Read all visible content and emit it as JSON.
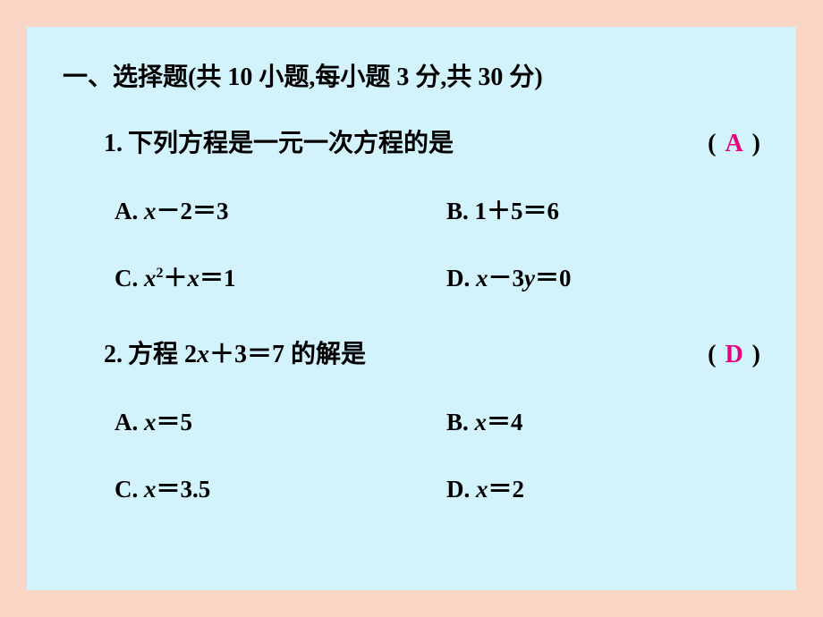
{
  "colors": {
    "outer_bg": "#fad6c7",
    "inner_bg": "#d3f3fc",
    "text": "#000000",
    "answer": "#e4007f"
  },
  "section": {
    "label": "一、选择题(共 10 小题,每小题 3 分,共 30 分)"
  },
  "questions": [
    {
      "number": "1.",
      "stem": "下列方程是一元一次方程的是",
      "paren_open": "(",
      "paren_close": ")",
      "answer": "A",
      "options": {
        "A": {
          "label": "A.",
          "expr_html": "<span class=\"math\">x</span><span class=\"op\">－</span><span class=\"num\">2</span><span class=\"op\">＝</span><span class=\"num\">3</span>"
        },
        "B": {
          "label": "B.",
          "expr_html": "<span class=\"num\">1</span><span class=\"op\">＋</span><span class=\"num\">5</span><span class=\"op\">＝</span><span class=\"num\">6</span>"
        },
        "C": {
          "label": "C.",
          "expr_html": "<span class=\"math\">x</span><span class=\"sup\">2</span><span class=\"op\">＋</span><span class=\"math\">x</span><span class=\"op\">＝</span><span class=\"num\">1</span>"
        },
        "D": {
          "label": "D.",
          "expr_html": "<span class=\"math\">x</span><span class=\"op\">－</span><span class=\"num\">3</span><span class=\"math\">y</span><span class=\"op\">＝</span><span class=\"num\">0</span>"
        }
      }
    },
    {
      "number": "2.",
      "stem_html": "方程 <span class=\"num\">2</span><span class=\"math\">x</span><span class=\"op\">＋</span><span class=\"num\">3</span><span class=\"op\">＝</span><span class=\"num\">7</span> 的解是",
      "paren_open": "(",
      "paren_close": ")",
      "answer": "D",
      "options": {
        "A": {
          "label": "A.",
          "expr_html": "<span class=\"math\">x</span><span class=\"op\">＝</span><span class=\"num\">5</span>"
        },
        "B": {
          "label": "B.",
          "expr_html": "<span class=\"math\">x</span><span class=\"op\">＝</span><span class=\"num\">4</span>"
        },
        "C": {
          "label": "C.",
          "expr_html": "<span class=\"math\">x</span><span class=\"op\">＝</span><span class=\"num\">3.5</span>"
        },
        "D": {
          "label": "D.",
          "expr_html": "<span class=\"math\">x</span><span class=\"op\">＝</span><span class=\"num\">2</span>"
        }
      }
    }
  ]
}
